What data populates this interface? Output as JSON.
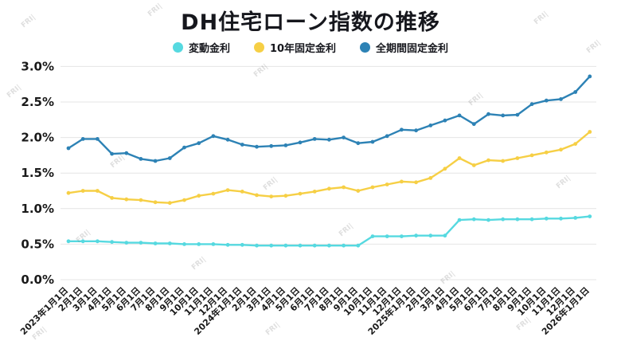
{
  "title": "DH住宅ローン指数の推移",
  "watermark": "FRI|",
  "legend": [
    {
      "label": "変動金利",
      "color": "#56d9e0"
    },
    {
      "label": "10年固定金利",
      "color": "#f6cf45"
    },
    {
      "label": "全期間固定金利",
      "color": "#2d82b5"
    }
  ],
  "chart_data": {
    "type": "line",
    "title": "DH住宅ローン指数の推移",
    "xlabel": "",
    "ylabel": "",
    "ylim": [
      0.0,
      3.0
    ],
    "grid": true,
    "legend_position": "top",
    "y_ticks": [
      "0.0%",
      "0.5%",
      "1.0%",
      "1.5%",
      "2.0%",
      "2.5%",
      "3.0%"
    ],
    "x_labels": [
      "2023年1月1日",
      "2月1日",
      "3月1日",
      "4月1日",
      "5月1日",
      "6月1日",
      "7月1日",
      "8月1日",
      "9月1日",
      "10月1日",
      "11月1日",
      "12月1日",
      "2024年1月1日",
      "2月1日",
      "3月1日",
      "4月1日",
      "5月1日",
      "6月1日",
      "7月1日",
      "8月1日",
      "9月1日",
      "10月1日",
      "11月1日",
      "12月1日",
      "2025年1月1日",
      "2月1日",
      "3月1日",
      "4月1日",
      "5月1日",
      "6月1日",
      "7月1日",
      "8月1日",
      "9月1日",
      "10月1日",
      "11月1日",
      "12月1日",
      "2026年1月1日"
    ],
    "series": [
      {
        "name": "変動金利",
        "color": "#56d9e0",
        "values": [
          0.54,
          0.54,
          0.54,
          0.53,
          0.52,
          0.52,
          0.51,
          0.51,
          0.5,
          0.5,
          0.5,
          0.49,
          0.49,
          0.48,
          0.48,
          0.48,
          0.48,
          0.48,
          0.48,
          0.48,
          0.48,
          0.61,
          0.61,
          0.61,
          0.62,
          0.62,
          0.62,
          0.84,
          0.85,
          0.84,
          0.85,
          0.85,
          0.85,
          0.86,
          0.86,
          0.87,
          0.89
        ]
      },
      {
        "name": "10年固定金利",
        "color": "#f6cf45",
        "values": [
          1.22,
          1.25,
          1.25,
          1.15,
          1.13,
          1.12,
          1.09,
          1.08,
          1.12,
          1.18,
          1.21,
          1.26,
          1.24,
          1.19,
          1.17,
          1.18,
          1.21,
          1.24,
          1.28,
          1.3,
          1.25,
          1.3,
          1.34,
          1.38,
          1.37,
          1.43,
          1.56,
          1.71,
          1.61,
          1.68,
          1.67,
          1.71,
          1.75,
          1.79,
          1.83,
          1.91,
          2.08
        ]
      },
      {
        "name": "全期間固定金利",
        "color": "#2d82b5",
        "values": [
          1.85,
          1.98,
          1.98,
          1.77,
          1.78,
          1.7,
          1.67,
          1.71,
          1.86,
          1.92,
          2.02,
          1.97,
          1.9,
          1.87,
          1.88,
          1.89,
          1.93,
          1.98,
          1.97,
          2.0,
          1.92,
          1.94,
          2.02,
          2.11,
          2.1,
          2.17,
          2.24,
          2.31,
          2.19,
          2.33,
          2.31,
          2.32,
          2.47,
          2.52,
          2.54,
          2.64,
          2.86
        ]
      }
    ]
  }
}
